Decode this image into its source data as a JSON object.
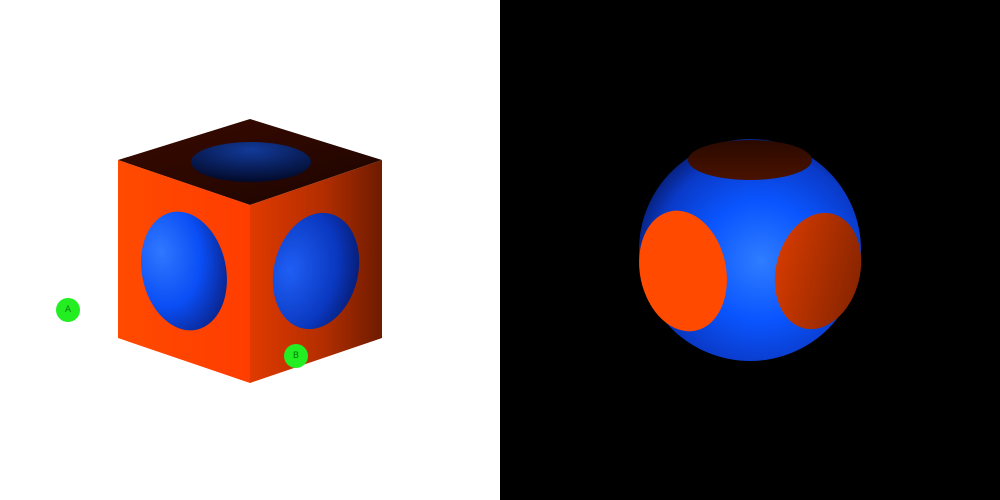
{
  "panels": [
    {
      "id": "left",
      "background": "#ffffff",
      "object": "cube-with-spherical-cutouts",
      "cube_color": "#ff4400",
      "cutout_color": "#0044ff",
      "markers": [
        {
          "label": "A",
          "color": "#22ee22"
        },
        {
          "label": "B",
          "color": "#22ee22"
        }
      ]
    },
    {
      "id": "right",
      "background": "#000000",
      "object": "sphere-intersected-with-cube",
      "sphere_color": "#0044ff",
      "face_color": "#ff4400"
    }
  ]
}
